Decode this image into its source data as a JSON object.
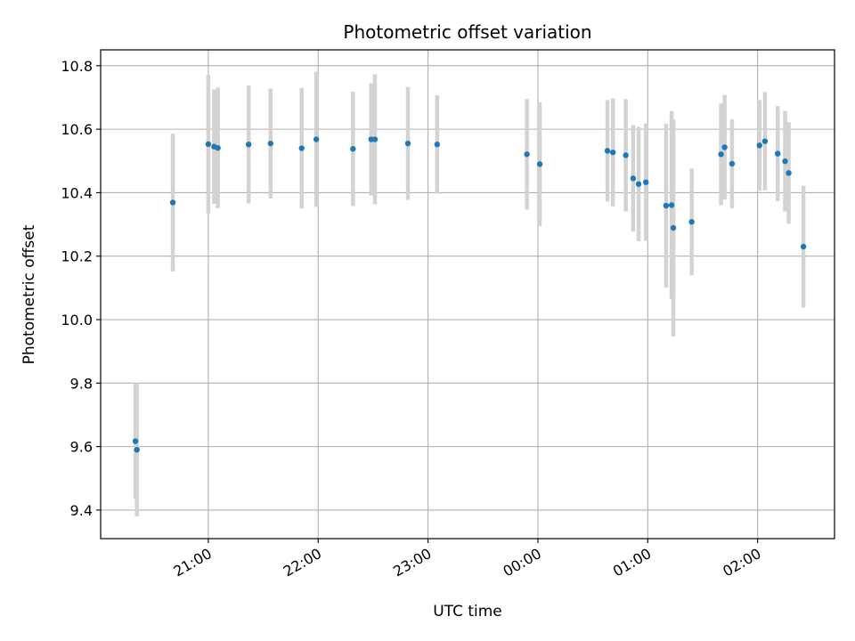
{
  "chart_data": {
    "type": "scatter",
    "title": "Photometric offset variation",
    "xlabel": "UTC time",
    "ylabel": "Photometric offset",
    "grid": true,
    "x_unit": "hours_utc_from_midnight_day1",
    "xlim": [
      20.02,
      26.7
    ],
    "ylim": [
      9.31,
      10.85
    ],
    "x_ticks": [
      {
        "value": 21,
        "label": "21:00"
      },
      {
        "value": 22,
        "label": "22:00"
      },
      {
        "value": 23,
        "label": "23:00"
      },
      {
        "value": 24,
        "label": "00:00"
      },
      {
        "value": 25,
        "label": "01:00"
      },
      {
        "value": 26,
        "label": "02:00"
      }
    ],
    "y_ticks": [
      {
        "value": 9.4,
        "label": "9.4"
      },
      {
        "value": 9.6,
        "label": "9.6"
      },
      {
        "value": 9.8,
        "label": "9.8"
      },
      {
        "value": 10.0,
        "label": "10.0"
      },
      {
        "value": 10.2,
        "label": "10.2"
      },
      {
        "value": 10.4,
        "label": "10.4"
      },
      {
        "value": 10.6,
        "label": "10.6"
      },
      {
        "value": 10.8,
        "label": "10.8"
      }
    ],
    "marker_color": "#1f77b4",
    "errorbar_color": "#d3d3d3",
    "points": [
      {
        "x": 20.337,
        "y": 9.617,
        "err": 0.18
      },
      {
        "x": 20.35,
        "y": 9.59,
        "err": 0.21
      },
      {
        "x": 20.677,
        "y": 10.369,
        "err": 0.217
      },
      {
        "x": 21.0,
        "y": 10.553,
        "err": 0.218
      },
      {
        "x": 21.053,
        "y": 10.545,
        "err": 0.18
      },
      {
        "x": 21.087,
        "y": 10.541,
        "err": 0.19
      },
      {
        "x": 21.367,
        "y": 10.552,
        "err": 0.186
      },
      {
        "x": 21.567,
        "y": 10.555,
        "err": 0.173
      },
      {
        "x": 21.85,
        "y": 10.54,
        "err": 0.19
      },
      {
        "x": 21.983,
        "y": 10.568,
        "err": 0.213
      },
      {
        "x": 22.317,
        "y": 10.538,
        "err": 0.18
      },
      {
        "x": 22.483,
        "y": 10.568,
        "err": 0.177
      },
      {
        "x": 22.517,
        "y": 10.568,
        "err": 0.205
      },
      {
        "x": 22.817,
        "y": 10.555,
        "err": 0.178
      },
      {
        "x": 23.083,
        "y": 10.552,
        "err": 0.155
      },
      {
        "x": 23.9,
        "y": 10.521,
        "err": 0.174
      },
      {
        "x": 24.017,
        "y": 10.49,
        "err": 0.195
      },
      {
        "x": 24.633,
        "y": 10.532,
        "err": 0.16
      },
      {
        "x": 24.683,
        "y": 10.527,
        "err": 0.17
      },
      {
        "x": 24.8,
        "y": 10.518,
        "err": 0.177
      },
      {
        "x": 24.867,
        "y": 10.445,
        "err": 0.168
      },
      {
        "x": 24.917,
        "y": 10.427,
        "err": 0.18
      },
      {
        "x": 24.983,
        "y": 10.433,
        "err": 0.185
      },
      {
        "x": 25.167,
        "y": 10.359,
        "err": 0.258
      },
      {
        "x": 25.217,
        "y": 10.361,
        "err": 0.296
      },
      {
        "x": 25.233,
        "y": 10.289,
        "err": 0.342
      },
      {
        "x": 25.4,
        "y": 10.308,
        "err": 0.168
      },
      {
        "x": 25.667,
        "y": 10.521,
        "err": 0.16
      },
      {
        "x": 25.7,
        "y": 10.543,
        "err": 0.165
      },
      {
        "x": 25.767,
        "y": 10.491,
        "err": 0.14
      },
      {
        "x": 26.017,
        "y": 10.549,
        "err": 0.143
      },
      {
        "x": 26.067,
        "y": 10.562,
        "err": 0.155
      },
      {
        "x": 26.183,
        "y": 10.523,
        "err": 0.15
      },
      {
        "x": 26.25,
        "y": 10.499,
        "err": 0.158
      },
      {
        "x": 26.283,
        "y": 10.462,
        "err": 0.16
      },
      {
        "x": 26.417,
        "y": 10.23,
        "err": 0.192
      }
    ]
  }
}
